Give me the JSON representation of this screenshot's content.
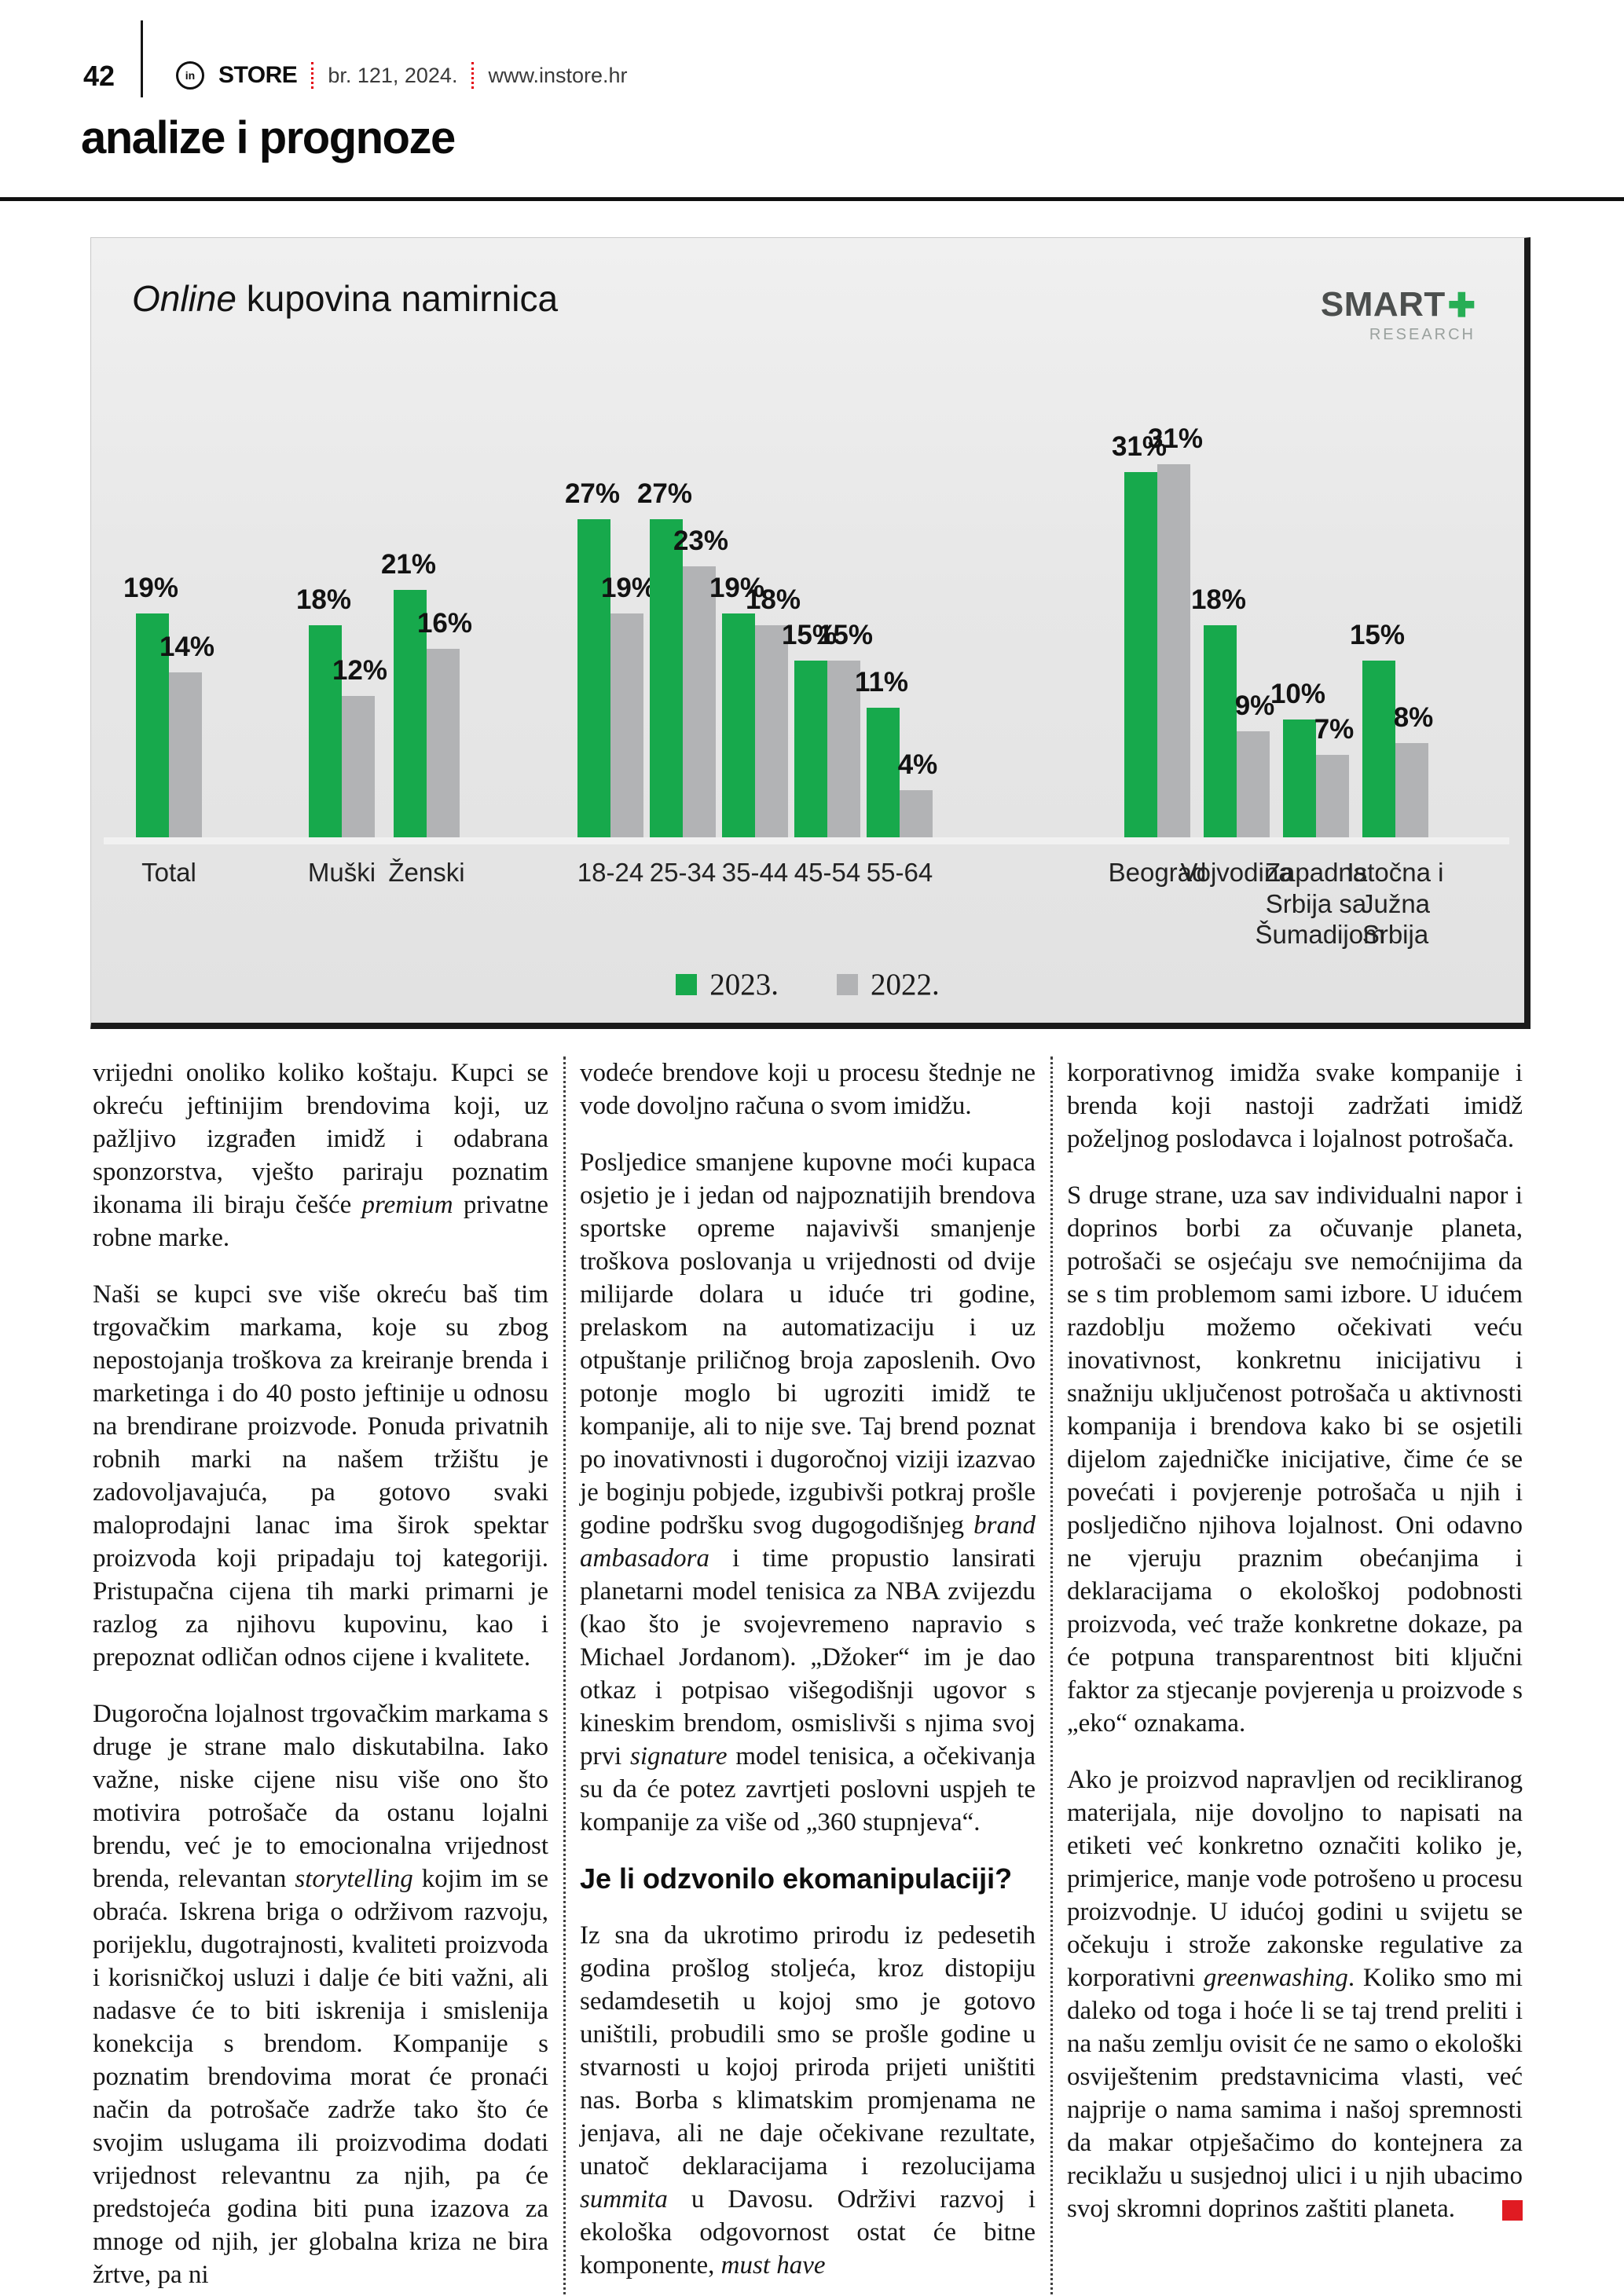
{
  "page": {
    "number": "42",
    "logo_circle": "in",
    "magazine": "STORE",
    "issue": "br. 121, 2024.",
    "website": "www.instore.hr",
    "section": "analize i prognoze"
  },
  "chart": {
    "title_italic": "Online",
    "title_rest": " kupovina namirnica",
    "logo": {
      "brand": "SMART",
      "plus": "✚",
      "sub": "RESEARCH"
    }
  },
  "chart_data": {
    "type": "bar",
    "title": "Online kupovina namirnica",
    "unit": "%",
    "value_labels": true,
    "grid": false,
    "legend_position": "bottom",
    "ylim": [
      0,
      33
    ],
    "categories": [
      "Total",
      "Muški",
      "Ženski",
      "18-24",
      "25-34",
      "35-44",
      "45-54",
      "55-64",
      "Beograd",
      "Vojvodina",
      "Zapadna Srbija sa Šumadijom",
      "Istočna i Južna Srbija"
    ],
    "category_groups": [
      "total",
      "gender",
      "gender",
      "age",
      "age",
      "age",
      "age",
      "age",
      "region",
      "region",
      "region",
      "region"
    ],
    "series": [
      {
        "name": "2023.",
        "color": "#17a94c",
        "values": [
          19,
          18,
          21,
          27,
          27,
          19,
          15,
          11,
          31,
          18,
          10,
          15
        ]
      },
      {
        "name": "2022.",
        "color": "#b2b3b5",
        "values": [
          14,
          12,
          16,
          19,
          23,
          18,
          15,
          4,
          31,
          9,
          7,
          8
        ]
      }
    ]
  },
  "article": {
    "columns": [
      {
        "blocks": [
          {
            "type": "p",
            "html": "vrijedni onoliko koliko koštaju. Kupci se okreću jeftinijim brendovima koji, uz pažljivo izgrađen imidž i odabrana sponzorstva, vješto pariraju poznatim ikonama ili biraju češće <i>premium</i> privatne robne marke."
          },
          {
            "type": "p",
            "html": "Naši se kupci sve više okreću baš tim trgovačkim markama, koje su zbog nepostojanja troškova za kreiranje brenda i marketinga i do 40 posto jeftinije u odnosu na brendirane proizvode. Ponuda privatnih robnih marki na našem tržištu je zadovoljavajuća, pa gotovo svaki maloprodajni lanac ima širok spektar proizvoda koji pripadaju toj kategoriji. Pristupačna cijena tih marki primarni je razlog za njihovu kupovinu, kao i prepoznat odličan odnos cijene i kvalitete."
          },
          {
            "type": "p",
            "html": "Dugoročna lojalnost trgovačkim markama s druge je strane malo diskutabilna. Iako važne, niske cijene nisu više ono što motivira potrošače da ostanu lojalni brendu, već je to emocionalna vrijednost brenda, relevantan <i>storytelling</i> kojim im se obraća. Iskrena briga o održivom razvoju, porijeklu, dugotrajnosti, kvaliteti proizvoda i korisničkoj usluzi i dalje će biti važni, ali nadasve će to biti iskrenija i smislenija konekcija s brendom. Kompanije s poznatim brendovima morat će pronaći način da potrošače zadrže tako što će svojim uslugama ili proizvodima dodati vrijednost relevantnu za njih, pa će predstojeća godina biti puna izazova za mnoge od njih, jer globalna kriza ne bira žrtve, pa ni"
          }
        ]
      },
      {
        "blocks": [
          {
            "type": "p",
            "html": "vodeće brendove koji u procesu štednje ne vode dovoljno računa o svom imidžu."
          },
          {
            "type": "p",
            "html": "Posljedice smanjene kupovne moći kupaca osjetio je i jedan od najpoznatijih brendova sportske opreme najavivši smanjenje troškova poslovanja u vrijednosti od dvije milijarde dolara u iduće tri godine, prelaskom na automatizaciju i uz otpuštanje priličnog broja zaposlenih. Ovo potonje moglo bi ugroziti imidž te kompanije, ali to nije sve. Taj brend poznat po inovativnosti i dugoročnoj viziji izazvao je boginju pobjede, izgubivši potkraj prošle godine podršku svog dugogodišnjeg <i>brand ambasadora</i> i time propustio lansirati planetarni model tenisica za NBA zvijezdu (kao što je svojevremeno napravio s Michael Jordanom). „Džoker“ im je dao otkaz i potpisao višegodišnji ugovor s kineskim brendom, osmislivši s njima svoj prvi <i>signature</i> model tenisica, a očekivanja su da će potez zavrtjeti poslovni uspjeh te kompanije za više od „360 stupnjeva“."
          },
          {
            "type": "h",
            "text": "Je li odzvonilo ekomanipulaciji?"
          },
          {
            "type": "p",
            "html": "Iz sna da ukrotimo prirodu iz pedesetih godina prošlog stoljeća, kroz distopiju sedamdesetih u kojoj smo je gotovo uništili, probudili smo se prošle godine u stvarnosti u kojoj priroda prijeti uništiti nas. Borba s klimatskim promjenama ne jenjava, ali ne daje očekivane rezultate, unatoč deklaracijama i rezolucijama <i>summita</i> u Davosu. Održivi razvoj i ekološka odgovornost ostat će bitne komponente, <i>must have</i>"
          }
        ]
      },
      {
        "blocks": [
          {
            "type": "p",
            "html": "korporativnog imidža svake kompanije i brenda koji nastoji zadržati imidž poželjnog poslodavca i lojalnost potrošača."
          },
          {
            "type": "p",
            "html": "S druge strane, uza sav individualni napor i doprinos borbi za očuvanje planeta, potrošači se osjećaju sve nemoćnijima da se s tim problemom sami izbore. U idućem razdoblju možemo očekivati veću inovativnost, konkretnu inicijativu i snažniju uključenost potrošača u aktivnosti kompanija i brendova kako bi se osjetili dijelom zajedničke inicijative, čime će se povećati i povjerenje potrošača u njih i posljedično njihova lojalnost. Oni odavno ne vjeruju praznim obećanjima i deklaracijama o ekološkoj podobnosti proizvoda, već traže konkretne dokaze, pa će potpuna transparentnost biti ključni faktor za stjecanje povjerenja u proizvode s „eko“ oznakama."
          },
          {
            "type": "p",
            "endmark": true,
            "html": "Ako je proizvod napravljen od recikliranog materijala, nije dovoljno to napisati na etiketi već konkretno označiti koliko je, primjerice, manje vode potrošeno u procesu proizvodnje. U idućoj godini u svijetu se očekuju i strože zakonske regulative za korporativni <i>greenwashing</i>. Koliko smo mi daleko od toga i hoće li se taj trend preliti i na našu zemlju ovisit će ne samo o ekološki osviještenim predstavnicima vlasti, već najprije o nama samima i našoj spremnosti da makar otpješačimo do kontejnera za reciklažu u susjednoj ulici i u njih ubacimo svoj skromni doprinos zaštiti planeta."
          }
        ]
      }
    ]
  }
}
